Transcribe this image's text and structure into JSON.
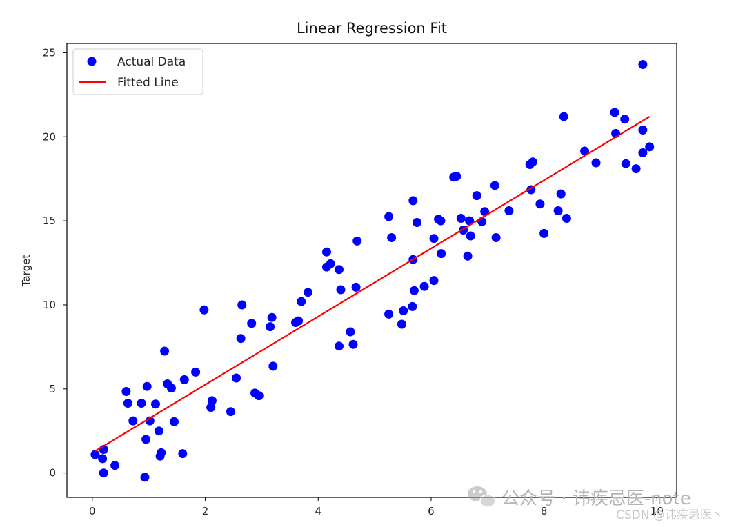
{
  "chart_data": {
    "type": "scatter",
    "title": "Linear Regression Fit",
    "xlabel": "",
    "ylabel": "Target",
    "xlim": [
      -0.45,
      10.35
    ],
    "ylim": [
      -1.45,
      25.55
    ],
    "x_ticks": [
      0,
      2,
      4,
      6,
      8,
      10
    ],
    "x_tick_labels": [
      "0",
      "2",
      "4",
      "6",
      "8",
      "10"
    ],
    "y_ticks": [
      0,
      5,
      10,
      15,
      20,
      25
    ],
    "y_tick_labels": [
      "0",
      "5",
      "10",
      "15",
      "20",
      "25"
    ],
    "grid": false,
    "legend_position": "top-left",
    "series": [
      {
        "name": "Actual Data",
        "kind": "scatter",
        "color": "#0000ff",
        "points": [
          [
            0.05,
            1.1
          ],
          [
            0.18,
            0.85
          ],
          [
            0.2,
            1.4
          ],
          [
            0.2,
            0.0
          ],
          [
            0.4,
            0.45
          ],
          [
            0.6,
            4.85
          ],
          [
            0.63,
            4.15
          ],
          [
            0.72,
            3.1
          ],
          [
            0.87,
            4.15
          ],
          [
            0.93,
            -0.25
          ],
          [
            0.95,
            2.0
          ],
          [
            0.97,
            5.15
          ],
          [
            1.02,
            3.1
          ],
          [
            1.12,
            4.1
          ],
          [
            1.18,
            2.5
          ],
          [
            1.2,
            1.0
          ],
          [
            1.22,
            1.2
          ],
          [
            1.28,
            7.25
          ],
          [
            1.33,
            5.3
          ],
          [
            1.4,
            5.05
          ],
          [
            1.45,
            3.05
          ],
          [
            1.6,
            1.15
          ],
          [
            1.63,
            5.55
          ],
          [
            1.83,
            6.0
          ],
          [
            1.98,
            9.7
          ],
          [
            2.1,
            3.9
          ],
          [
            2.12,
            4.3
          ],
          [
            2.45,
            3.65
          ],
          [
            2.55,
            5.65
          ],
          [
            2.63,
            8.0
          ],
          [
            2.65,
            10.0
          ],
          [
            2.82,
            8.9
          ],
          [
            2.88,
            4.75
          ],
          [
            2.95,
            4.6
          ],
          [
            3.15,
            8.7
          ],
          [
            3.18,
            9.25
          ],
          [
            3.2,
            6.35
          ],
          [
            3.6,
            8.95
          ],
          [
            3.65,
            9.05
          ],
          [
            3.7,
            10.2
          ],
          [
            3.82,
            10.75
          ],
          [
            4.15,
            13.15
          ],
          [
            4.15,
            12.25
          ],
          [
            4.22,
            12.45
          ],
          [
            4.37,
            7.55
          ],
          [
            4.37,
            12.1
          ],
          [
            4.4,
            10.9
          ],
          [
            4.57,
            8.4
          ],
          [
            4.62,
            7.65
          ],
          [
            4.67,
            11.05
          ],
          [
            4.69,
            13.8
          ],
          [
            5.25,
            15.25
          ],
          [
            5.25,
            9.45
          ],
          [
            5.3,
            14.0
          ],
          [
            5.48,
            8.85
          ],
          [
            5.51,
            9.65
          ],
          [
            5.67,
            9.9
          ],
          [
            5.68,
            12.7
          ],
          [
            5.68,
            16.2
          ],
          [
            5.7,
            10.85
          ],
          [
            5.75,
            14.9
          ],
          [
            5.88,
            11.1
          ],
          [
            6.05,
            11.45
          ],
          [
            6.05,
            13.95
          ],
          [
            6.13,
            15.1
          ],
          [
            6.17,
            15.0
          ],
          [
            6.18,
            13.05
          ],
          [
            6.4,
            17.6
          ],
          [
            6.45,
            17.65
          ],
          [
            6.53,
            15.15
          ],
          [
            6.57,
            14.45
          ],
          [
            6.65,
            12.9
          ],
          [
            6.68,
            15.0
          ],
          [
            6.7,
            14.1
          ],
          [
            6.81,
            16.5
          ],
          [
            6.9,
            14.95
          ],
          [
            6.95,
            15.55
          ],
          [
            7.13,
            17.1
          ],
          [
            7.15,
            14.0
          ],
          [
            7.38,
            15.6
          ],
          [
            7.75,
            18.35
          ],
          [
            7.77,
            16.85
          ],
          [
            7.8,
            18.5
          ],
          [
            7.93,
            16.0
          ],
          [
            8.0,
            14.25
          ],
          [
            8.25,
            15.6
          ],
          [
            8.3,
            16.6
          ],
          [
            8.35,
            21.2
          ],
          [
            8.4,
            15.15
          ],
          [
            8.72,
            19.15
          ],
          [
            8.92,
            18.45
          ],
          [
            9.25,
            21.45
          ],
          [
            9.27,
            20.2
          ],
          [
            9.43,
            21.05
          ],
          [
            9.45,
            18.4
          ],
          [
            9.63,
            18.1
          ],
          [
            9.75,
            24.3
          ],
          [
            9.75,
            20.4
          ],
          [
            9.75,
            19.05
          ],
          [
            9.87,
            19.4
          ]
        ]
      },
      {
        "name": "Fitted Line",
        "kind": "line",
        "color": "#ff0000",
        "points": [
          [
            0.05,
            1.3
          ],
          [
            9.87,
            21.2
          ]
        ]
      }
    ]
  },
  "watermark": {
    "main": "公众号 · 讳疾忌医-note",
    "sub": "CSDN @讳疾忌医丶",
    "icon": "wechat-icon"
  }
}
